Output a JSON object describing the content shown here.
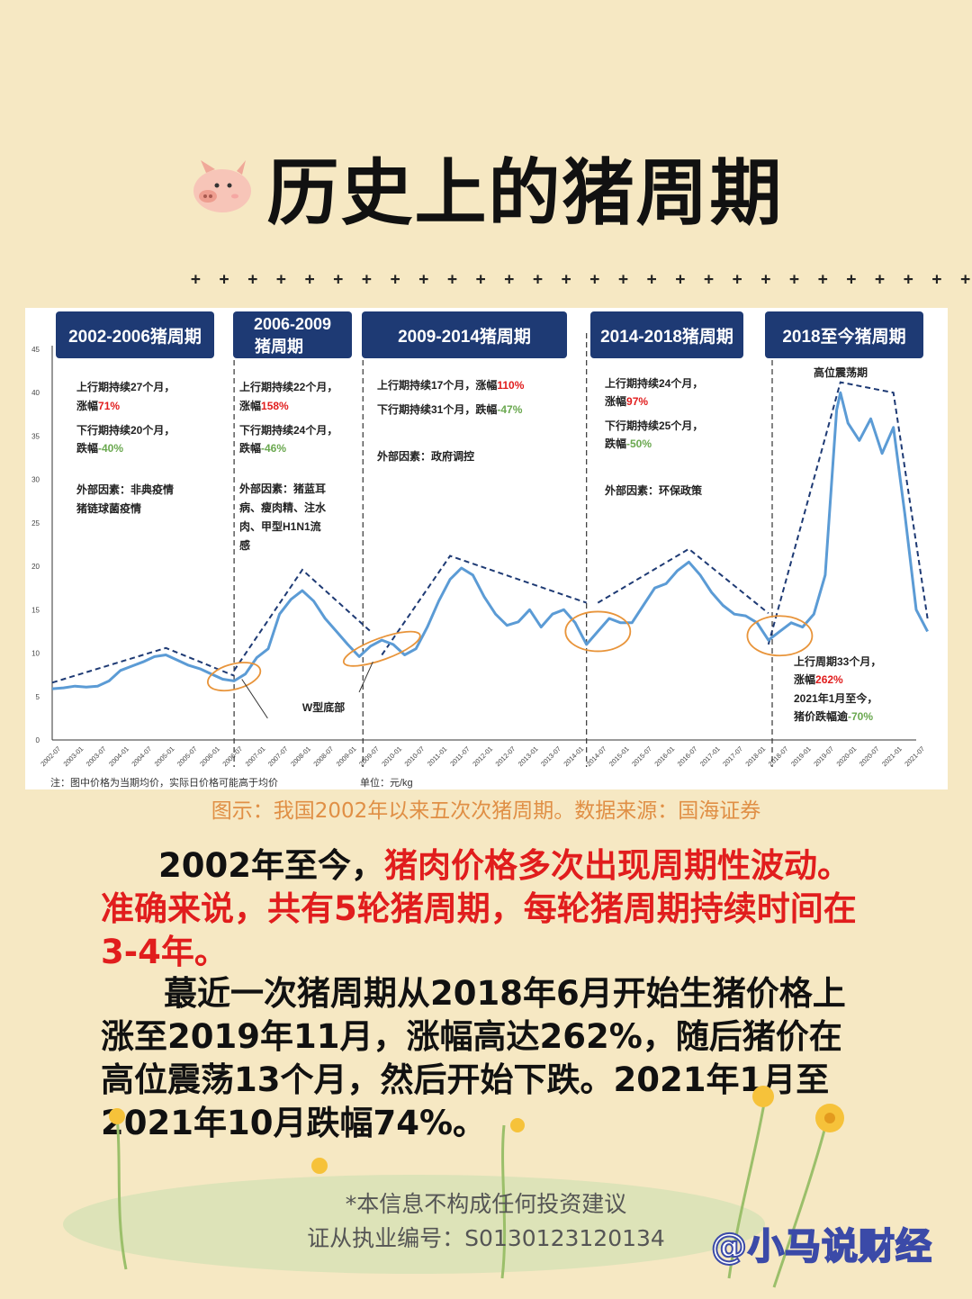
{
  "title": "历史上的猪周期",
  "plus_row": "+ + + + + + + + + + + + + + + + + + + + + + + + + + + +",
  "caption": "图示：我国2002年以来五次次猪周期。数据来源：国海证券",
  "paragraph1": {
    "normal": "2002年至今，",
    "red": "猪肉价格多次出现周期性波动。准确来说，共有5轮猪周期，每轮猪周期持续时间在3-4年。"
  },
  "paragraph2": "蕞近一次猪周期从2018年6月开始生猪价格上涨至2019年11月，涨幅高达262%，随后猪价在高位震荡13个月，然后开始下跌。2021年1月至2021年10月跌幅74%。",
  "footer_line1": "*本信息不构成任何投资建议",
  "footer_line2": "证从执业编号：S0130123120134",
  "handle": "@小马说财经",
  "colors": {
    "background": "#f6e8c3",
    "series": "#5b9bd5",
    "header_box": "#1e3a74",
    "dash": "#1e3a74",
    "red": "#e11d1d",
    "green": "#6aa84f",
    "caption": "#e08f45",
    "circle": "#e8943a"
  },
  "chart_data": {
    "type": "line",
    "ylim": [
      0,
      45
    ],
    "yticks": [
      "0",
      "5",
      "10",
      "15",
      "20",
      "25",
      "30",
      "35",
      "40",
      "45"
    ],
    "xticks": [
      "2002-07",
      "2003-01",
      "2003-07",
      "2004-01",
      "2004-07",
      "2005-01",
      "2005-07",
      "2006-01",
      "2006-07",
      "2007-01",
      "2007-07",
      "2008-01",
      "2008-07",
      "2009-01",
      "2009-07",
      "2010-01",
      "2010-07",
      "2011-01",
      "2011-07",
      "2012-01",
      "2012-07",
      "2013-01",
      "2013-07",
      "2014-01",
      "2014-07",
      "2015-01",
      "2015-07",
      "2016-01",
      "2016-07",
      "2017-01",
      "2017-07",
      "2018-01",
      "2018-07",
      "2019-01",
      "2019-07",
      "2020-01",
      "2020-07",
      "2021-01",
      "2021-07"
    ],
    "footnote_left": "注：图中价格为当期均价，实际日价格可能高于均价",
    "footnote_unit": "单位：元/kg",
    "series": [
      {
        "x": [
          "2002-07",
          "2002-10",
          "2003-01",
          "2003-04",
          "2003-07",
          "2003-10",
          "2004-01",
          "2004-04",
          "2004-07",
          "2004-10",
          "2005-01",
          "2005-04",
          "2005-07",
          "2005-10",
          "2006-01",
          "2006-04",
          "2006-07",
          "2006-10",
          "2007-01",
          "2007-04",
          "2007-07",
          "2007-10",
          "2008-01",
          "2008-04",
          "2008-07",
          "2008-10",
          "2009-01",
          "2009-04",
          "2009-07",
          "2009-10",
          "2010-01",
          "2010-04",
          "2010-07",
          "2010-10",
          "2011-01",
          "2011-04",
          "2011-07",
          "2011-10",
          "2012-01",
          "2012-04",
          "2012-07",
          "2012-10",
          "2013-01",
          "2013-04",
          "2013-07",
          "2013-10",
          "2014-01",
          "2014-04",
          "2014-07",
          "2014-10",
          "2015-01",
          "2015-04",
          "2015-07",
          "2015-10",
          "2016-01",
          "2016-04",
          "2016-07",
          "2016-10",
          "2017-01",
          "2017-04",
          "2017-07",
          "2017-10",
          "2018-01",
          "2018-04",
          "2018-07",
          "2018-10",
          "2019-01",
          "2019-04",
          "2019-07",
          "2019-10",
          "2019-11",
          "2020-01",
          "2020-04",
          "2020-07",
          "2020-10",
          "2021-01",
          "2021-04",
          "2021-07",
          "2021-10"
        ],
        "y": [
          5.9,
          6.0,
          6.2,
          6.1,
          6.2,
          6.8,
          8.0,
          8.5,
          9.0,
          9.6,
          9.8,
          9.2,
          8.6,
          8.2,
          7.6,
          7.0,
          6.8,
          7.6,
          9.5,
          10.5,
          14.5,
          16.2,
          17.2,
          16.0,
          14.0,
          12.5,
          11.0,
          9.6,
          10.8,
          11.5,
          11.0,
          9.8,
          10.5,
          13.0,
          16.0,
          18.5,
          19.8,
          19.0,
          16.5,
          14.5,
          13.2,
          13.6,
          15.0,
          13.0,
          14.5,
          15.0,
          13.5,
          11.0,
          12.5,
          14.0,
          13.5,
          13.5,
          15.5,
          17.5,
          18.0,
          19.5,
          20.5,
          19.0,
          17.0,
          15.5,
          14.5,
          14.3,
          13.5,
          11.5,
          12.5,
          13.5,
          13.0,
          14.5,
          19.0,
          38.0,
          40.0,
          36.5,
          34.5,
          37.0,
          33.0,
          36.0,
          26.0,
          15.0,
          12.5
        ]
      }
    ],
    "cycles": [
      {
        "header": "2002-2006猪周期",
        "lines": [
          "上行期持续27个月，",
          "涨幅71%",
          "下行期持续20个月，",
          "跌幅-40%",
          "外部因素：非典疫情",
          "猪链球菌疫情"
        ]
      },
      {
        "header": "2006-2009 猪周期",
        "lines": [
          "上行期持续22个月，",
          "涨幅158%",
          "下行期持续24个月，",
          "跌幅-46%",
          "外部因素：猪蓝耳",
          "病、瘦肉精、注水",
          "肉、甲型H1N1流",
          "感"
        ]
      },
      {
        "header": "2009-2014猪周期",
        "lines": [
          "上行期持续17个月，涨幅110%",
          "下行期持续31个月，跌幅-47%",
          "外部因素：政府调控"
        ]
      },
      {
        "header": "2014-2018猪周期",
        "lines": [
          "上行期持续24个月，",
          "涨幅97%",
          "下行期持续25个月，",
          "跌幅-50%",
          "外部因素：环保政策"
        ]
      },
      {
        "header": "2018至今猪周期",
        "lines": [
          "高位震荡期",
          "上行周期33个月，",
          "涨幅262%",
          "2021年1月至今，",
          "猪价跌幅逾-70%"
        ]
      }
    ],
    "annotation_w": "W型底部"
  }
}
